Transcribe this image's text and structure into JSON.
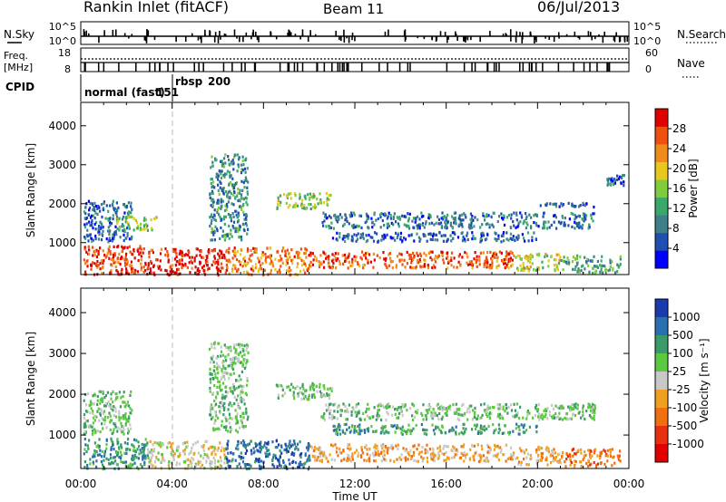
{
  "header": {
    "station": "Rankin Inlet (fitACF)",
    "beam": "Beam 11",
    "date": "06/Jul/2013"
  },
  "nsky_panel": {
    "left_label": "N.Sky",
    "right_label": "N.Search",
    "left_ticks": [
      "10^5",
      "10^0"
    ],
    "right_ticks": [
      "10^5",
      "10^0"
    ]
  },
  "freq_panel": {
    "left_label_line1": "Freq.",
    "left_label_line2": "[MHz]",
    "right_label": "Nave",
    "left_ticks": [
      "18",
      "8"
    ],
    "right_ticks": [
      "60",
      "0"
    ]
  },
  "cpid": {
    "label": "CPID",
    "modes": [
      {
        "name": "normal (fast)",
        "id": "151",
        "start_hour": 0
      },
      {
        "name": "rbsp",
        "id": "200",
        "start_hour": 4
      }
    ]
  },
  "x_axis": {
    "label": "Time UT",
    "ticks": [
      "00:00",
      "04:00",
      "08:00",
      "12:00",
      "16:00",
      "20:00",
      "00:00"
    ],
    "range_hours": [
      0,
      24
    ]
  },
  "chart_data": [
    {
      "type": "heatmap",
      "parameter": "Power",
      "ylabel": "Slant Range [km]",
      "y_ticks": [
        1000,
        2000,
        3000,
        4000
      ],
      "ylim": [
        180,
        4600
      ],
      "colorbar_label": "Power [dB]",
      "colorbar_ticks": [
        4,
        8,
        12,
        16,
        20,
        24,
        28
      ],
      "colorbar_range": [
        0,
        32
      ],
      "colors": [
        "#0000ff",
        "#1f4fb0",
        "#3e7f8a",
        "#3aa86a",
        "#7fcc3c",
        "#e6c81e",
        "#f08a1a",
        "#ee5010",
        "#e00000"
      ],
      "scatter_regions": [
        {
          "t0": 0.1,
          "t1": 2.9,
          "r0": 200,
          "r1": 950,
          "value": 28
        },
        {
          "t0": 2.9,
          "t1": 6.3,
          "r0": 200,
          "r1": 880,
          "value": 30
        },
        {
          "t0": 6.3,
          "t1": 10.0,
          "r0": 200,
          "r1": 900,
          "value": 24
        },
        {
          "t0": 10.0,
          "t1": 19.0,
          "r0": 380,
          "r1": 800,
          "value": 26
        },
        {
          "t0": 19.0,
          "t1": 21.0,
          "r0": 300,
          "r1": 750,
          "value": 18
        },
        {
          "t0": 21.0,
          "t1": 23.6,
          "r0": 250,
          "r1": 700,
          "value": 12
        },
        {
          "t0": 0.1,
          "t1": 2.2,
          "r0": 1050,
          "r1": 2100,
          "value": 7
        },
        {
          "t0": 1.5,
          "t1": 3.4,
          "r0": 1350,
          "r1": 1700,
          "value": 16
        },
        {
          "t0": 5.6,
          "t1": 7.3,
          "r0": 1100,
          "r1": 3300,
          "value": 10
        },
        {
          "t0": 8.5,
          "t1": 11.0,
          "r0": 1900,
          "r1": 2300,
          "value": 16
        },
        {
          "t0": 10.5,
          "t1": 22.5,
          "r0": 1400,
          "r1": 1800,
          "value": 8
        },
        {
          "t0": 11.0,
          "t1": 20.0,
          "r0": 1050,
          "r1": 1300,
          "value": 7
        },
        {
          "t0": 20.0,
          "t1": 22.5,
          "r0": 1950,
          "r1": 2050,
          "value": 6
        },
        {
          "t0": 23.0,
          "t1": 23.8,
          "r0": 2500,
          "r1": 2800,
          "value": 7
        }
      ]
    },
    {
      "type": "heatmap",
      "parameter": "Velocity",
      "ylabel": "Slant Range [km]",
      "y_ticks": [
        1000,
        2000,
        3000,
        4000
      ],
      "ylim": [
        180,
        4600
      ],
      "colorbar_label": "Velocity [m s⁻¹]",
      "colorbar_ticks": [
        "1000",
        "500",
        "100",
        "25",
        "-25",
        "-100",
        "-500",
        "-1000"
      ],
      "colors": [
        "#1a3bb0",
        "#2a6fb0",
        "#3a9a6a",
        "#5cc840",
        "#c8c8c8",
        "#f0a020",
        "#f07010",
        "#e83010",
        "#e00000"
      ],
      "scatter_regions": [
        {
          "t0": 0.1,
          "t1": 2.9,
          "r0": 200,
          "r1": 950,
          "value": "100"
        },
        {
          "t0": 2.9,
          "t1": 6.3,
          "r0": 200,
          "r1": 880,
          "value": "-25"
        },
        {
          "t0": 6.3,
          "t1": 10.0,
          "r0": 200,
          "r1": 900,
          "value": "500"
        },
        {
          "t0": 10.0,
          "t1": 19.0,
          "r0": 380,
          "r1": 800,
          "value": "-100"
        },
        {
          "t0": 19.0,
          "t1": 21.0,
          "r0": 300,
          "r1": 750,
          "value": "-100"
        },
        {
          "t0": 21.0,
          "t1": 23.6,
          "r0": 250,
          "r1": 700,
          "value": "-500"
        },
        {
          "t0": 0.1,
          "t1": 2.2,
          "r0": 1050,
          "r1": 2100,
          "value": "25"
        },
        {
          "t0": 5.6,
          "t1": 7.3,
          "r0": 1100,
          "r1": 3300,
          "value": "25"
        },
        {
          "t0": 8.5,
          "t1": 11.0,
          "r0": 1900,
          "r1": 2300,
          "value": "25"
        },
        {
          "t0": 10.5,
          "t1": 22.5,
          "r0": 1400,
          "r1": 1800,
          "value": "25"
        },
        {
          "t0": 11.0,
          "t1": 20.0,
          "r0": 1050,
          "r1": 1300,
          "value": "100"
        }
      ]
    }
  ]
}
